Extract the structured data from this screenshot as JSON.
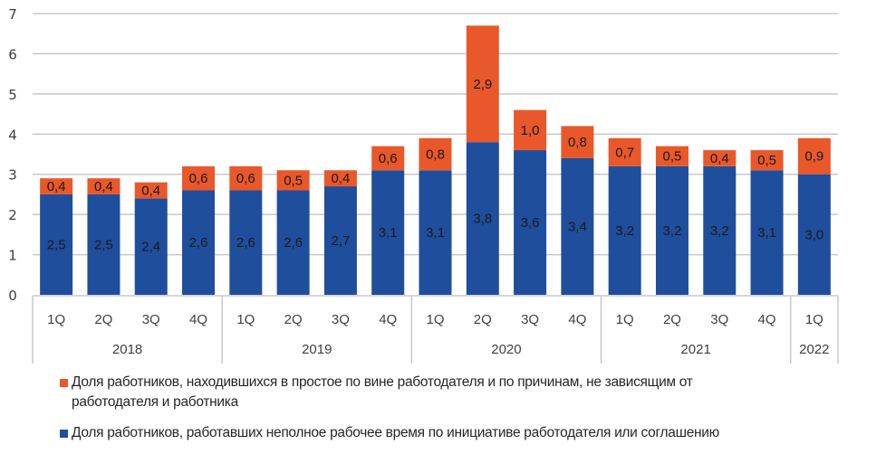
{
  "chart_data": {
    "type": "bar",
    "stacked": true,
    "title": "",
    "xlabel": "",
    "ylabel": "",
    "ylim": [
      0,
      7
    ],
    "yticks": [
      "0",
      "1",
      "2",
      "3",
      "4",
      "5",
      "6",
      "7"
    ],
    "grid": true,
    "legend_position": "bottom",
    "categories": [
      "1Q",
      "2Q",
      "3Q",
      "4Q",
      "1Q",
      "2Q",
      "3Q",
      "4Q",
      "1Q",
      "2Q",
      "3Q",
      "4Q",
      "1Q",
      "2Q",
      "3Q",
      "4Q",
      "1Q"
    ],
    "groups": [
      {
        "label": "2018",
        "count": 4
      },
      {
        "label": "2019",
        "count": 4
      },
      {
        "label": "2020",
        "count": 4
      },
      {
        "label": "2021",
        "count": 4
      },
      {
        "label": "2022",
        "count": 1
      }
    ],
    "series": [
      {
        "name": "Доля работников, работавших неполное рабочее время по инициативе работодателя или соглашению",
        "color": "#1f4e9c",
        "values": [
          2.5,
          2.5,
          2.4,
          2.6,
          2.6,
          2.6,
          2.7,
          3.1,
          3.1,
          3.8,
          3.6,
          3.4,
          3.2,
          3.2,
          3.2,
          3.1,
          3.0
        ],
        "labels": [
          "2,5",
          "2,5",
          "2,4",
          "2,6",
          "2,6",
          "2,6",
          "2,7",
          "3,1",
          "3,1",
          "3,8",
          "3,6",
          "3,4",
          "3,2",
          "3,2",
          "3,2",
          "3,1",
          "3,0"
        ]
      },
      {
        "name": "Доля работников, находившихся в простое по вине работодателя и по причинам, не зависящим от работодателя и работника",
        "color": "#e8582a",
        "values": [
          0.4,
          0.4,
          0.4,
          0.6,
          0.6,
          0.5,
          0.4,
          0.6,
          0.8,
          2.9,
          1.0,
          0.8,
          0.7,
          0.5,
          0.4,
          0.5,
          0.9
        ],
        "labels": [
          "0,4",
          "0,4",
          "0,4",
          "0,6",
          "0,6",
          "0,5",
          "0,4",
          "0,6",
          "0,8",
          "2,9",
          "1,0",
          "0,8",
          "0,7",
          "0,5",
          "0,4",
          "0,5",
          "0,9"
        ]
      }
    ],
    "legend": [
      {
        "series_index": 1,
        "line1": "Доля работников, находившихся в простое по вине работодателя и по причинам, не зависящим от",
        "line2": "работодателя и работника"
      },
      {
        "series_index": 0,
        "line1": "Доля работников, работавших неполное рабочее время по инициативе работодателя или соглашению",
        "line2": ""
      }
    ]
  }
}
